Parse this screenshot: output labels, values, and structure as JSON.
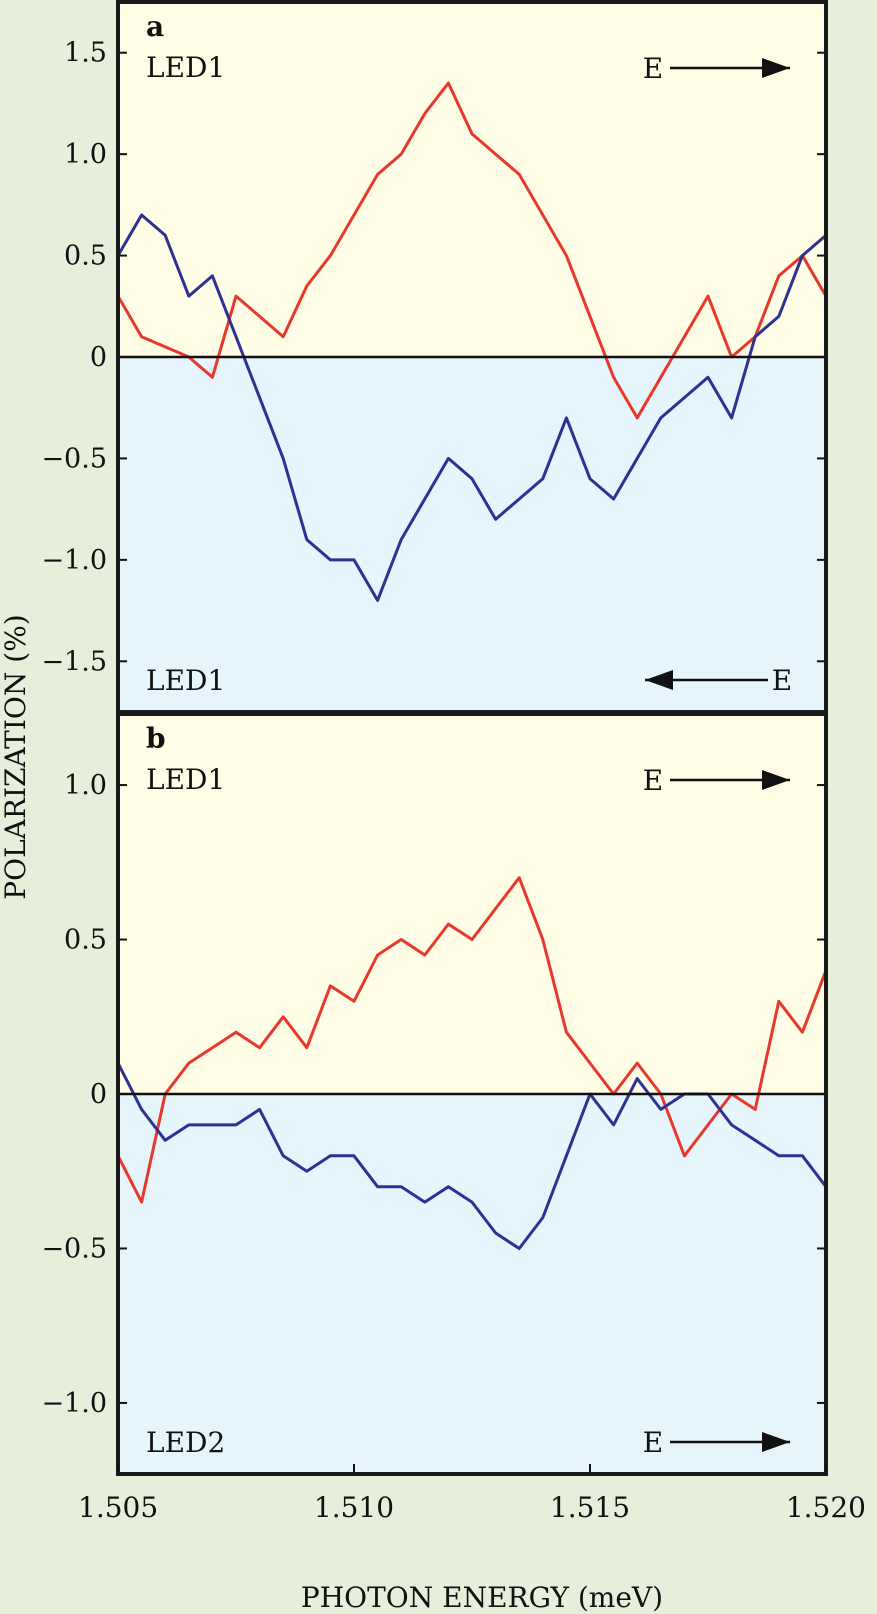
{
  "figure": {
    "ylabel": "POLARIZATION (%)",
    "xlabel": "PHOTON ENERGY (meV)",
    "x_ticks": [
      "1.505",
      "1.510",
      "1.515",
      "1.520"
    ],
    "colors": {
      "background": "#e6efda",
      "positive_region": "#fffde6",
      "negative_region": "#e6f5fc",
      "red_series": "#e8382c",
      "blue_series": "#2e3192",
      "frame": "#1a1a1a"
    }
  },
  "chart_data": [
    {
      "type": "line",
      "panel_label": "a",
      "xlabel": "PHOTON ENERGY (meV)",
      "ylabel": "POLARIZATION (%)",
      "xlim": [
        1.505,
        1.52
      ],
      "ylim": [
        -1.75,
        1.75
      ],
      "y_ticks": [
        "1.5",
        "1.0",
        "0.5",
        "0",
        "−0.5",
        "−1.0",
        "−1.5"
      ],
      "y_tick_values": [
        1.5,
        1.0,
        0.5,
        0,
        -0.5,
        -1.0,
        -1.5
      ],
      "annotations": {
        "top_label": "LED1",
        "bottom_label": "LED1",
        "top_field": "E",
        "bottom_field": "E",
        "top_arrow": "right",
        "bottom_arrow": "left"
      },
      "series": [
        {
          "color": "#e8382c",
          "x": [
            1.505,
            1.5055,
            1.506,
            1.5065,
            1.507,
            1.5075,
            1.508,
            1.5085,
            1.509,
            1.5095,
            1.51,
            1.5105,
            1.511,
            1.5115,
            1.512,
            1.5125,
            1.513,
            1.5135,
            1.514,
            1.5145,
            1.515,
            1.5155,
            1.516,
            1.5165,
            1.517,
            1.5175,
            1.518,
            1.5185,
            1.519,
            1.5195,
            1.52
          ],
          "y": [
            0.3,
            0.1,
            0.05,
            0.0,
            -0.1,
            0.3,
            0.2,
            0.1,
            0.35,
            0.5,
            0.7,
            0.9,
            1.0,
            1.2,
            1.35,
            1.1,
            1.0,
            0.9,
            0.7,
            0.5,
            0.2,
            -0.1,
            -0.3,
            -0.1,
            0.1,
            0.3,
            0.0,
            0.1,
            0.4,
            0.5,
            0.3
          ]
        },
        {
          "color": "#2e3192",
          "x": [
            1.505,
            1.5055,
            1.506,
            1.5065,
            1.507,
            1.5075,
            1.508,
            1.5085,
            1.509,
            1.5095,
            1.51,
            1.5105,
            1.511,
            1.5115,
            1.512,
            1.5125,
            1.513,
            1.5135,
            1.514,
            1.5145,
            1.515,
            1.5155,
            1.516,
            1.5165,
            1.517,
            1.5175,
            1.518,
            1.5185,
            1.519,
            1.5195,
            1.52
          ],
          "y": [
            0.5,
            0.7,
            0.6,
            0.3,
            0.4,
            0.1,
            -0.2,
            -0.5,
            -0.9,
            -1.0,
            -1.0,
            -1.2,
            -0.9,
            -0.7,
            -0.5,
            -0.6,
            -0.8,
            -0.7,
            -0.6,
            -0.3,
            -0.6,
            -0.7,
            -0.5,
            -0.3,
            -0.2,
            -0.1,
            -0.3,
            0.1,
            0.2,
            0.5,
            0.6
          ]
        }
      ]
    },
    {
      "type": "line",
      "panel_label": "b",
      "xlabel": "PHOTON ENERGY (meV)",
      "ylabel": "POLARIZATION (%)",
      "xlim": [
        1.505,
        1.52
      ],
      "ylim": [
        -1.23,
        1.23
      ],
      "y_ticks": [
        "1.0",
        "0.5",
        "0",
        "−0.5",
        "−1.0"
      ],
      "y_tick_values": [
        1.0,
        0.5,
        0,
        -0.5,
        -1.0
      ],
      "annotations": {
        "top_label": "LED1",
        "bottom_label": "LED2",
        "top_field": "E",
        "bottom_field": "E",
        "top_arrow": "right",
        "bottom_arrow": "right"
      },
      "series": [
        {
          "color": "#e8382c",
          "x": [
            1.505,
            1.5055,
            1.506,
            1.5065,
            1.507,
            1.5075,
            1.508,
            1.5085,
            1.509,
            1.5095,
            1.51,
            1.5105,
            1.511,
            1.5115,
            1.512,
            1.5125,
            1.513,
            1.5135,
            1.514,
            1.5145,
            1.515,
            1.5155,
            1.516,
            1.5165,
            1.517,
            1.5175,
            1.518,
            1.5185,
            1.519,
            1.5195,
            1.52
          ],
          "y": [
            -0.2,
            -0.35,
            0.0,
            0.1,
            0.15,
            0.2,
            0.15,
            0.25,
            0.15,
            0.35,
            0.3,
            0.45,
            0.5,
            0.45,
            0.55,
            0.5,
            0.6,
            0.7,
            0.5,
            0.2,
            0.1,
            0.0,
            0.1,
            0.0,
            -0.2,
            -0.1,
            0.0,
            -0.05,
            0.3,
            0.2,
            0.4
          ]
        },
        {
          "color": "#2e3192",
          "x": [
            1.505,
            1.5055,
            1.506,
            1.5065,
            1.507,
            1.5075,
            1.508,
            1.5085,
            1.509,
            1.5095,
            1.51,
            1.5105,
            1.511,
            1.5115,
            1.512,
            1.5125,
            1.513,
            1.5135,
            1.514,
            1.5145,
            1.515,
            1.5155,
            1.516,
            1.5165,
            1.517,
            1.5175,
            1.518,
            1.5185,
            1.519,
            1.5195,
            1.52
          ],
          "y": [
            0.1,
            -0.05,
            -0.15,
            -0.1,
            -0.1,
            -0.1,
            -0.05,
            -0.2,
            -0.25,
            -0.2,
            -0.2,
            -0.3,
            -0.3,
            -0.35,
            -0.3,
            -0.35,
            -0.45,
            -0.5,
            -0.4,
            -0.2,
            0.0,
            -0.1,
            0.05,
            -0.05,
            0.0,
            0.0,
            -0.1,
            -0.15,
            -0.2,
            -0.2,
            -0.3
          ]
        }
      ]
    }
  ]
}
